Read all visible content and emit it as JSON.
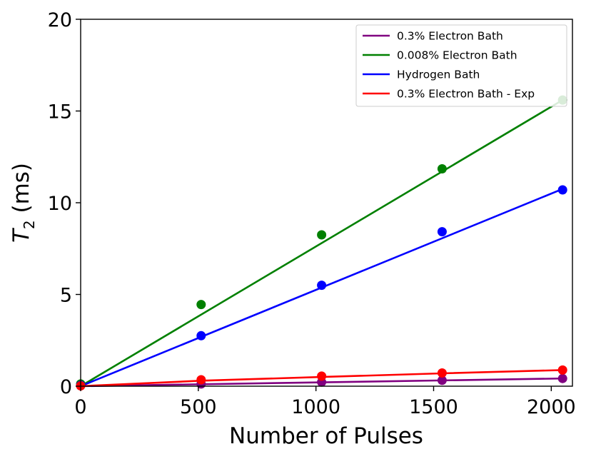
{
  "chart_data": {
    "type": "line",
    "title": "",
    "xlabel": "Number of Pulses",
    "ylabel_main": "T",
    "ylabel_sub": "2",
    "ylabel_unit": " (ms)",
    "xlim": [
      0,
      2090
    ],
    "ylim": [
      0,
      20
    ],
    "xticks": [
      0,
      500,
      1000,
      1500,
      2000
    ],
    "yticks": [
      0,
      5,
      10,
      15,
      20
    ],
    "xtick_labels": [
      "0",
      "500",
      "1000",
      "1500",
      "2000"
    ],
    "ytick_labels": [
      "0",
      "5",
      "10",
      "15",
      "20"
    ],
    "grid": false,
    "legend_position": "top-right",
    "series": [
      {
        "name": "0.3% Electron Bath",
        "color": "#800080",
        "points_x": [
          0,
          512,
          1024,
          1536,
          2048
        ],
        "points_y": [
          0.05,
          0.12,
          0.22,
          0.32,
          0.42
        ],
        "fit": [
          [
            0,
            0.0
          ],
          [
            2048,
            0.42
          ]
        ]
      },
      {
        "name": "0.008% Electron Bath",
        "color": "#008000",
        "points_x": [
          0,
          512,
          1024,
          1536,
          2048
        ],
        "points_y": [
          0.12,
          4.45,
          8.25,
          11.85,
          15.6
        ],
        "fit": [
          [
            0,
            0.0
          ],
          [
            2048,
            15.6
          ]
        ]
      },
      {
        "name": "Hydrogen Bath",
        "color": "#0000ff",
        "points_x": [
          0,
          512,
          1024,
          1536,
          2048
        ],
        "points_y": [
          0.05,
          2.75,
          5.5,
          8.42,
          10.7
        ],
        "fit": [
          [
            0,
            0.0
          ],
          [
            2048,
            10.75
          ]
        ]
      },
      {
        "name": "0.3% Electron Bath - Exp",
        "color": "#ff0000",
        "points_x": [
          0,
          512,
          1024,
          1536,
          2048
        ],
        "points_y": [
          0.02,
          0.35,
          0.55,
          0.72,
          0.88
        ],
        "fit": [
          [
            0,
            0.0
          ],
          [
            512,
            0.3
          ],
          [
            1024,
            0.5
          ],
          [
            1536,
            0.7
          ],
          [
            2048,
            0.88
          ]
        ]
      }
    ]
  }
}
